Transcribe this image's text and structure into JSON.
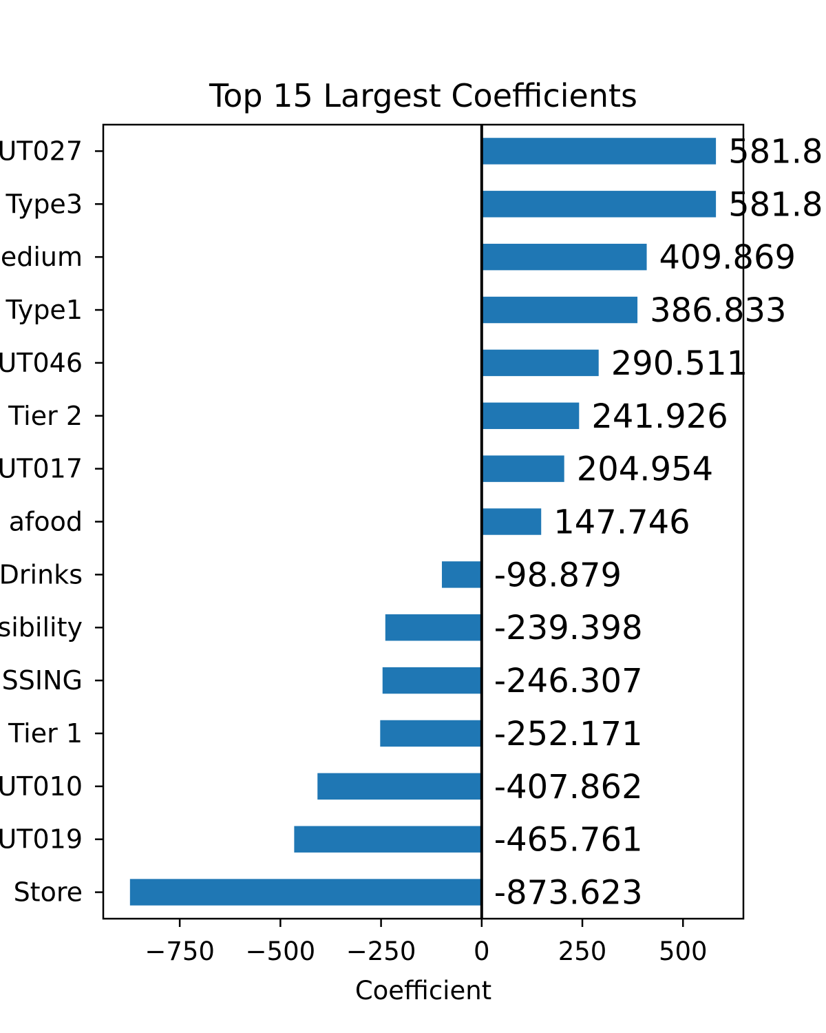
{
  "chart_data": {
    "type": "bar",
    "orientation": "horizontal",
    "title": "Top 15 Largest Coefficients",
    "xlabel": "Coefficient",
    "ylabel": "",
    "bar_color": "#1f77b4",
    "zero_line_color": "#000000",
    "grid": false,
    "legend": "none",
    "xlim": [
      -940,
      650
    ],
    "xticks": [
      {
        "value": -750,
        "label": "−750"
      },
      {
        "value": -500,
        "label": "−500"
      },
      {
        "value": -250,
        "label": "−250"
      },
      {
        "value": 0,
        "label": "0"
      },
      {
        "value": 250,
        "label": "250"
      },
      {
        "value": 500,
        "label": "500"
      }
    ],
    "categories": [
      "UT027",
      "Type3",
      "edium",
      "Type1",
      "UT046",
      "Tier 2",
      "UT017",
      "afood",
      "Drinks",
      "sibility",
      "SSING",
      "Tier 1",
      "UT010",
      "UT019",
      "Store"
    ],
    "values": [
      581.8,
      581.8,
      409.869,
      386.833,
      290.511,
      241.926,
      204.954,
      147.746,
      -98.879,
      -239.398,
      -246.307,
      -252.171,
      -407.862,
      -465.761,
      -873.623
    ],
    "value_labels": [
      "581.8",
      "581.8",
      "409.869",
      "386.833",
      "290.511",
      "241.926",
      "204.954",
      "147.746",
      "-98.879",
      "-239.398",
      "-246.307",
      "-252.171",
      "-407.862",
      "-465.761",
      "-873.623"
    ]
  }
}
